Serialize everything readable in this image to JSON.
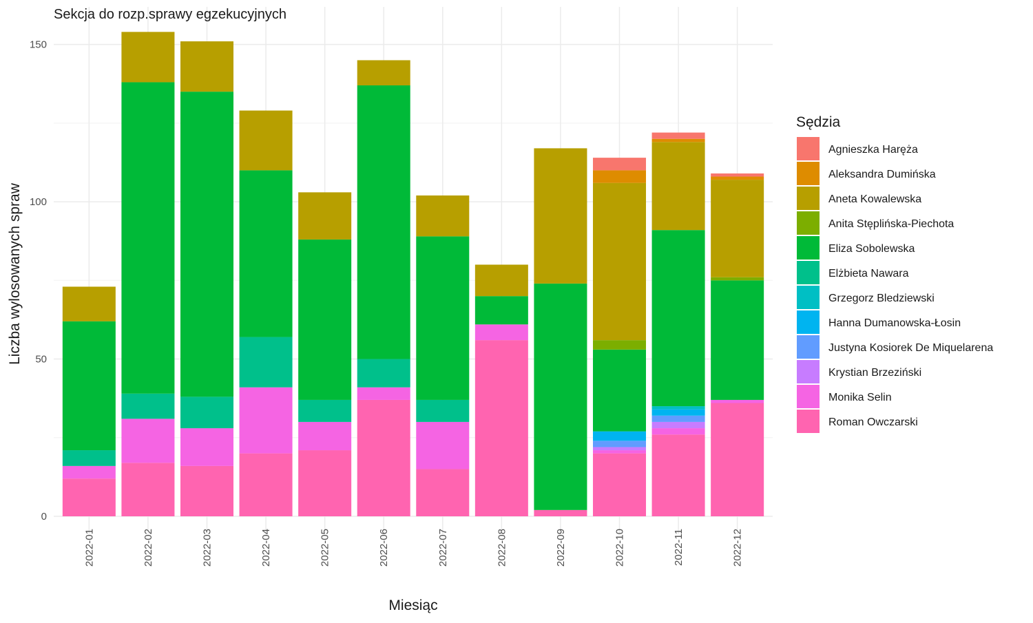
{
  "chart_data": {
    "type": "bar",
    "stacked": true,
    "title": "Sekcja do rozp.sprawy egzekucyjnych",
    "xlabel": "Miesiąc",
    "ylabel": "Liczba wylosowanych spraw",
    "ylim": [
      -6,
      158
    ],
    "yticks": [
      0,
      50,
      100,
      150
    ],
    "grid": true,
    "legend_title": "Sędzia",
    "legend_position": "right",
    "categories": [
      "2022-01",
      "2022-02",
      "2022-03",
      "2022-04",
      "2022-05",
      "2022-06",
      "2022-07",
      "2022-08",
      "2022-09",
      "2022-10",
      "2022-11",
      "2022-12"
    ],
    "series": [
      {
        "name": "Agnieszka Haręża",
        "color": "#F8766D",
        "values": [
          0,
          0,
          0,
          0,
          0,
          0,
          0,
          0,
          0,
          4,
          2,
          1
        ]
      },
      {
        "name": "Aleksandra Dumińska",
        "color": "#DE8C00",
        "values": [
          0,
          0,
          0,
          0,
          0,
          0,
          0,
          0,
          0,
          4,
          1,
          1
        ]
      },
      {
        "name": "Aneta Kowalewska",
        "color": "#B79F00",
        "values": [
          11,
          16,
          16,
          19,
          15,
          8,
          13,
          10,
          43,
          50,
          28,
          31
        ]
      },
      {
        "name": "Anita Stęplińska-Piechota",
        "color": "#7CAE00",
        "values": [
          0,
          0,
          0,
          0,
          0,
          0,
          0,
          0,
          0,
          3,
          0,
          1
        ]
      },
      {
        "name": "Eliza Sobolewska",
        "color": "#00BA38",
        "values": [
          41,
          99,
          97,
          53,
          51,
          87,
          52,
          9,
          72,
          26,
          56,
          38
        ]
      },
      {
        "name": "Elżbieta Nawara",
        "color": "#00C08B",
        "values": [
          5,
          8,
          10,
          16,
          7,
          9,
          7,
          0,
          0,
          0,
          0,
          0
        ]
      },
      {
        "name": "Grzegorz Bledziewski",
        "color": "#00BFC4",
        "values": [
          0,
          0,
          0,
          0,
          0,
          0,
          0,
          0,
          0,
          0,
          1,
          0
        ]
      },
      {
        "name": "Hanna Dumanowska-Łosin",
        "color": "#00B4F0",
        "values": [
          0,
          0,
          0,
          0,
          0,
          0,
          0,
          0,
          0,
          3,
          2,
          0
        ]
      },
      {
        "name": "Justyna Kosiorek De Miquelarena",
        "color": "#619CFF",
        "values": [
          0,
          0,
          0,
          0,
          0,
          0,
          0,
          0,
          0,
          2,
          2,
          0
        ]
      },
      {
        "name": "Krystian Brzeziński",
        "color": "#C77CFF",
        "values": [
          0,
          0,
          0,
          0,
          0,
          0,
          0,
          0,
          0,
          1,
          2,
          0
        ]
      },
      {
        "name": "Monika Selin",
        "color": "#F564E3",
        "values": [
          4,
          14,
          12,
          21,
          9,
          4,
          15,
          5,
          0,
          1,
          2,
          1
        ]
      },
      {
        "name": "Roman Owczarski",
        "color": "#FF64B0",
        "values": [
          12,
          17,
          16,
          20,
          21,
          37,
          15,
          56,
          2,
          20,
          26,
          36
        ]
      }
    ]
  }
}
